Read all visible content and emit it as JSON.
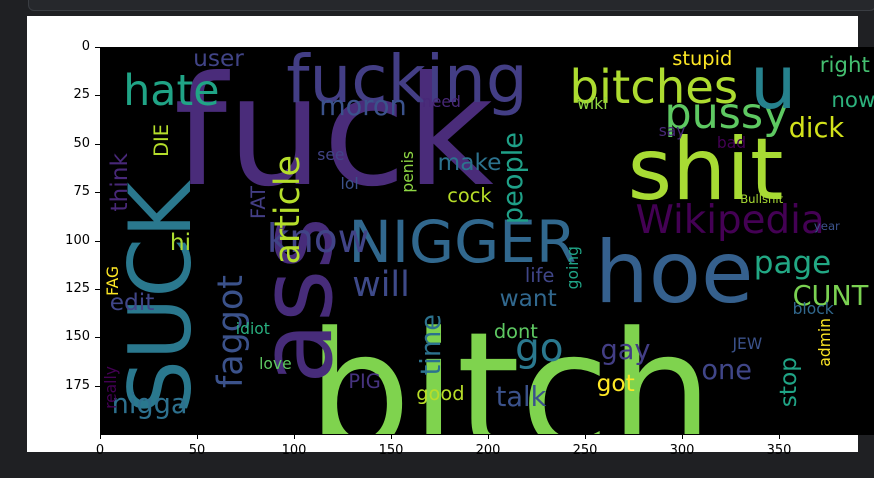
{
  "chart_data": {
    "type": "image",
    "xlim": [
      0,
      400
    ],
    "ylim": [
      200,
      0
    ],
    "x_ticks": [
      0,
      50,
      100,
      150,
      200,
      250,
      300,
      350
    ],
    "y_ticks": [
      0,
      25,
      50,
      75,
      100,
      125,
      150,
      175
    ],
    "x_tick_labels": [
      "0",
      "50",
      "100",
      "150",
      "200",
      "250",
      "300",
      "350"
    ],
    "y_tick_labels": [
      "0",
      "25",
      "50",
      "75",
      "100",
      "125",
      "150",
      "175"
    ],
    "words": [
      {
        "text": "bitch",
        "x": 107,
        "y": 137,
        "size": 84,
        "color": "#7fd34e"
      },
      {
        "text": "fuck",
        "x": 38,
        "y": 5,
        "size": 78,
        "color": "#4a2c7a",
        "rot": 0
      },
      {
        "text": "shit",
        "x": 272,
        "y": 42,
        "size": 44,
        "color": "#a8db34"
      },
      {
        "text": "hoe",
        "x": 255,
        "y": 95,
        "size": 44,
        "color": "#35608d"
      },
      {
        "text": "ass",
        "x": 75,
        "y": 88,
        "size": 52,
        "color": "#472c7a",
        "rot": -90
      },
      {
        "text": "SUCK",
        "x": 10,
        "y": 70,
        "size": 44,
        "color": "#2a788e",
        "rot": -90
      },
      {
        "text": "fucking",
        "x": 96,
        "y": 0,
        "size": 34,
        "color": "#433e85"
      },
      {
        "text": "NIGGER",
        "x": 128,
        "y": 86,
        "size": 30,
        "color": "#31688e"
      },
      {
        "text": "bitches",
        "x": 242,
        "y": 9,
        "size": 24,
        "color": "#addc30"
      },
      {
        "text": "pussy",
        "x": 291,
        "y": 24,
        "size": 22,
        "color": "#5ec962"
      },
      {
        "text": "Wikipedia",
        "x": 276,
        "y": 80,
        "size": 20,
        "color": "#440154"
      },
      {
        "text": "u",
        "x": 335,
        "y": 0,
        "size": 38,
        "color": "#26828e"
      },
      {
        "text": "hate",
        "x": 12,
        "y": 12,
        "size": 22,
        "color": "#20a486"
      },
      {
        "text": "moron",
        "x": 113,
        "y": 24,
        "size": 14,
        "color": "#3b528b"
      },
      {
        "text": "know",
        "x": 86,
        "y": 90,
        "size": 20,
        "color": "#414487"
      },
      {
        "text": "article",
        "x": 88,
        "y": 56,
        "size": 18,
        "color": "#b5de2b",
        "rot": -90
      },
      {
        "text": "will",
        "x": 130,
        "y": 114,
        "size": 18,
        "color": "#3e4a89"
      },
      {
        "text": "page",
        "x": 337,
        "y": 104,
        "size": 16,
        "color": "#22a884"
      },
      {
        "text": "CUNT",
        "x": 357,
        "y": 122,
        "size": 14,
        "color": "#7ad151"
      },
      {
        "text": "dick",
        "x": 355,
        "y": 35,
        "size": 14,
        "color": "#d2e21b"
      },
      {
        "text": "now",
        "x": 377,
        "y": 22,
        "size": 11,
        "color": "#2db27d"
      },
      {
        "text": "right",
        "x": 371,
        "y": 4,
        "size": 11,
        "color": "#44bf70"
      },
      {
        "text": "stupid",
        "x": 295,
        "y": 1,
        "size": 10,
        "color": "#fde725"
      },
      {
        "text": "people",
        "x": 206,
        "y": 44,
        "size": 14,
        "color": "#1fa188",
        "rot": -90
      },
      {
        "text": "make",
        "x": 174,
        "y": 54,
        "size": 12,
        "color": "#2c728e"
      },
      {
        "text": "cock",
        "x": 179,
        "y": 72,
        "size": 10,
        "color": "#b8de29"
      },
      {
        "text": "penis",
        "x": 155,
        "y": 54,
        "size": 8,
        "color": "#8fd744",
        "rot": -90
      },
      {
        "text": "faggot",
        "x": 59,
        "y": 118,
        "size": 18,
        "color": "#3b528b",
        "rot": -90
      },
      {
        "text": "nigga",
        "x": 6,
        "y": 178,
        "size": 14,
        "color": "#2d708e"
      },
      {
        "text": "think",
        "x": 4,
        "y": 55,
        "size": 12,
        "color": "#482878",
        "rot": -90
      },
      {
        "text": "DIE",
        "x": 27,
        "y": 40,
        "size": 10,
        "color": "#b5de2b",
        "rot": -90
      },
      {
        "text": "hi",
        "x": 36,
        "y": 95,
        "size": 12,
        "color": "#addc30"
      },
      {
        "text": "FAT",
        "x": 77,
        "y": 72,
        "size": 10,
        "color": "#433e85",
        "rot": -90
      },
      {
        "text": "edit",
        "x": 5,
        "y": 126,
        "size": 12,
        "color": "#404688"
      },
      {
        "text": "FAG",
        "x": 3,
        "y": 113,
        "size": 8,
        "color": "#fde725",
        "rot": -90
      },
      {
        "text": "user",
        "x": 48,
        "y": 0,
        "size": 12,
        "color": "#414487"
      },
      {
        "text": "go",
        "x": 214,
        "y": 146,
        "size": 20,
        "color": "#2a788e"
      },
      {
        "text": "talk",
        "x": 204,
        "y": 174,
        "size": 14,
        "color": "#3b528b"
      },
      {
        "text": "want",
        "x": 206,
        "y": 124,
        "size": 12,
        "color": "#31688e"
      },
      {
        "text": "life",
        "x": 219,
        "y": 113,
        "size": 10,
        "color": "#404688"
      },
      {
        "text": "dont",
        "x": 203,
        "y": 142,
        "size": 10,
        "color": "#5ec962"
      },
      {
        "text": "time",
        "x": 164,
        "y": 138,
        "size": 14,
        "color": "#2c728e",
        "rot": -90
      },
      {
        "text": "good",
        "x": 163,
        "y": 174,
        "size": 10,
        "color": "#b8de29"
      },
      {
        "text": "PIG",
        "x": 128,
        "y": 168,
        "size": 10,
        "color": "#46337e"
      },
      {
        "text": "gay",
        "x": 258,
        "y": 150,
        "size": 14,
        "color": "#433e85"
      },
      {
        "text": "got",
        "x": 256,
        "y": 168,
        "size": 12,
        "color": "#fde725"
      },
      {
        "text": "one",
        "x": 310,
        "y": 160,
        "size": 14,
        "color": "#404688"
      },
      {
        "text": "JEW",
        "x": 326,
        "y": 150,
        "size": 8,
        "color": "#3b528b"
      },
      {
        "text": "stop",
        "x": 349,
        "y": 160,
        "size": 12,
        "color": "#20a486",
        "rot": -90
      },
      {
        "text": "block",
        "x": 357,
        "y": 132,
        "size": 8,
        "color": "#31688e"
      },
      {
        "text": "admin",
        "x": 370,
        "y": 140,
        "size": 8,
        "color": "#fde725",
        "rot": -90
      },
      {
        "text": "love",
        "x": 82,
        "y": 160,
        "size": 8,
        "color": "#5ec962"
      },
      {
        "text": "idiot",
        "x": 70,
        "y": 142,
        "size": 8,
        "color": "#29af7f"
      },
      {
        "text": "lol",
        "x": 124,
        "y": 67,
        "size": 8,
        "color": "#3b528b"
      },
      {
        "text": "see",
        "x": 112,
        "y": 52,
        "size": 8,
        "color": "#414487"
      },
      {
        "text": "wiki",
        "x": 246,
        "y": 26,
        "size": 8,
        "color": "#8fd744"
      },
      {
        "text": "need",
        "x": 166,
        "y": 25,
        "size": 8,
        "color": "#482878"
      },
      {
        "text": "say",
        "x": 288,
        "y": 40,
        "size": 8,
        "color": "#482878"
      },
      {
        "text": "bad",
        "x": 318,
        "y": 46,
        "size": 8,
        "color": "#440154"
      },
      {
        "text": "going",
        "x": 240,
        "y": 103,
        "size": 8,
        "color": "#20a486",
        "rot": -90
      },
      {
        "text": "Bullshit",
        "x": 330,
        "y": 76,
        "size": 6,
        "color": "#a8db34"
      },
      {
        "text": "year",
        "x": 368,
        "y": 90,
        "size": 6,
        "color": "#3b528b"
      },
      {
        "text": "really",
        "x": 2,
        "y": 165,
        "size": 8,
        "color": "#440154",
        "rot": -90
      }
    ]
  }
}
